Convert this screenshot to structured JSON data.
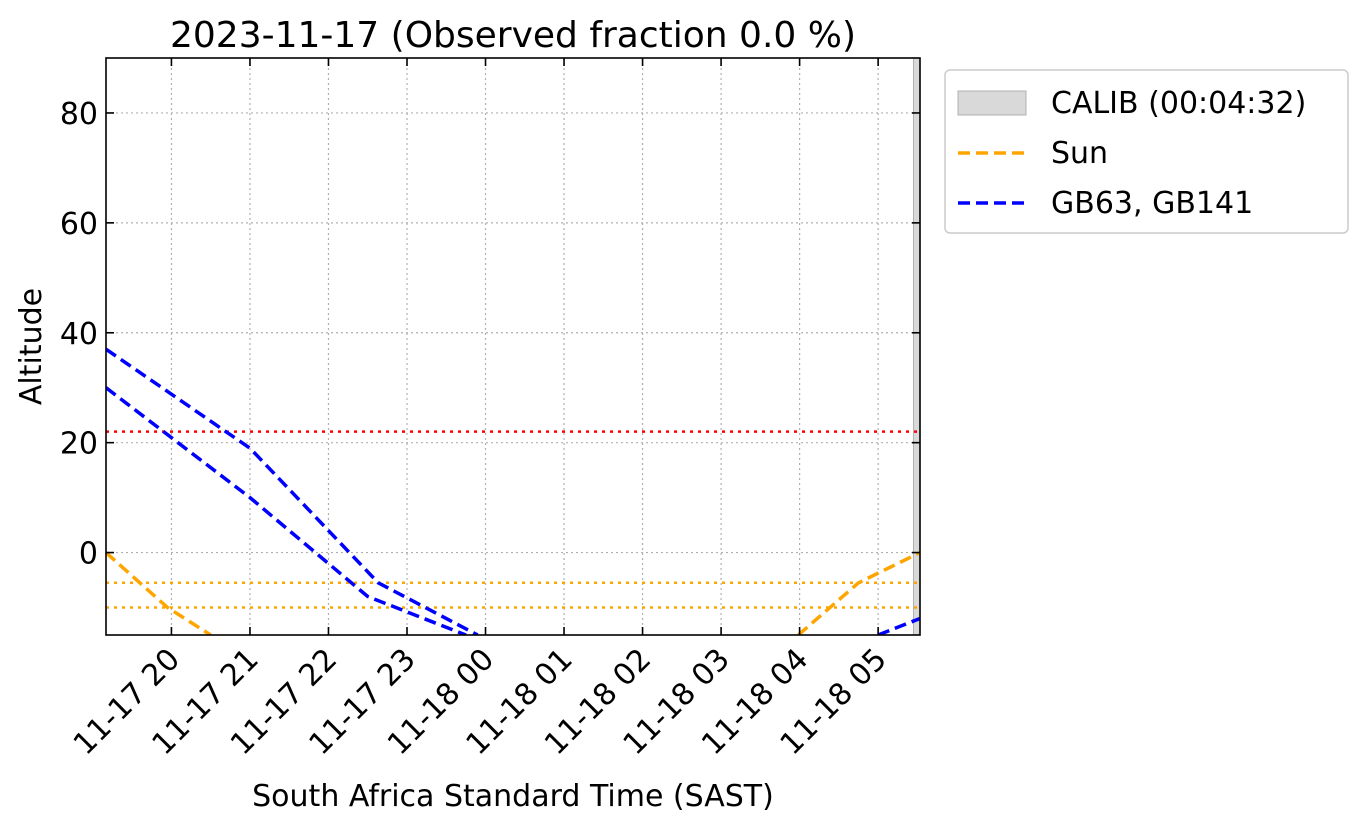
{
  "chart_data": {
    "type": "line",
    "title": "2023-11-17 (Observed fraction 0.0 %)",
    "xlabel": "South Africa Standard Time (SAST)",
    "ylabel": "Altitude",
    "xlim": [
      "2023-11-17 19:10",
      "2023-11-18 05:32"
    ],
    "ylim": [
      -15,
      90
    ],
    "x_ticks": [
      "11-17 20",
      "11-17 21",
      "11-17 22",
      "11-17 23",
      "11-18 00",
      "11-18 01",
      "11-18 02",
      "11-18 03",
      "11-18 04",
      "11-18 05"
    ],
    "y_ticks": [
      0,
      20,
      40,
      60,
      80
    ],
    "grid": true,
    "legend_position": "outside-right",
    "legend": [
      {
        "label": "CALIB (00:04:32)",
        "kind": "patch",
        "color": "#d9d9d9"
      },
      {
        "label": "Sun",
        "kind": "dashed-line",
        "color": "#ffa500"
      },
      {
        "label": "GB63, GB141",
        "kind": "dashed-line",
        "color": "#0000ff"
      }
    ],
    "series": [
      {
        "name": "Sun",
        "color": "#ffa500",
        "style": "dashed",
        "segments": [
          [
            [
              "2023-11-17 19:10",
              0.0
            ],
            [
              "2023-11-17 19:57",
              -10.0
            ],
            [
              "2023-11-17 20:30",
              -15.0
            ]
          ],
          [
            [
              "2023-11-18 03:59",
              -15.0
            ],
            [
              "2023-11-18 04:45",
              -5.5
            ],
            [
              "2023-11-18 05:32",
              0.0
            ]
          ]
        ]
      },
      {
        "name": "GB63, GB141",
        "color": "#0000ff",
        "style": "dashed",
        "segments": [
          [
            [
              "2023-11-17 19:10",
              37.0
            ],
            [
              "2023-11-17 21:00",
              19.0
            ],
            [
              "2023-11-17 22:38",
              -5.5
            ],
            [
              "2023-11-17 23:54",
              -15.0
            ]
          ]
        ]
      },
      {
        "name": "GB63, GB141",
        "color": "#0000ff",
        "style": "dashed",
        "segments": [
          [
            [
              "2023-11-17 19:10",
              30.0
            ],
            [
              "2023-11-17 21:00",
              10.0
            ],
            [
              "2023-11-17 22:30",
              -8.0
            ],
            [
              "2023-11-17 23:45",
              -15.0
            ]
          ],
          [
            [
              "2023-11-18 05:00",
              -15.0
            ],
            [
              "2023-11-18 05:32",
              -12.0
            ]
          ]
        ]
      }
    ],
    "reference_lines": [
      {
        "y": 22,
        "color": "#ff0000",
        "style": "dotted"
      },
      {
        "y": -5.5,
        "color": "#ffa500",
        "style": "dotted"
      },
      {
        "y": -10,
        "color": "#ffa500",
        "style": "dotted"
      }
    ],
    "shaded_spans": [
      {
        "label": "CALIB (00:04:32)",
        "x_start": "2023-11-18 05:27",
        "x_end": "2023-11-18 05:32",
        "color": "#d9d9d9"
      }
    ]
  }
}
